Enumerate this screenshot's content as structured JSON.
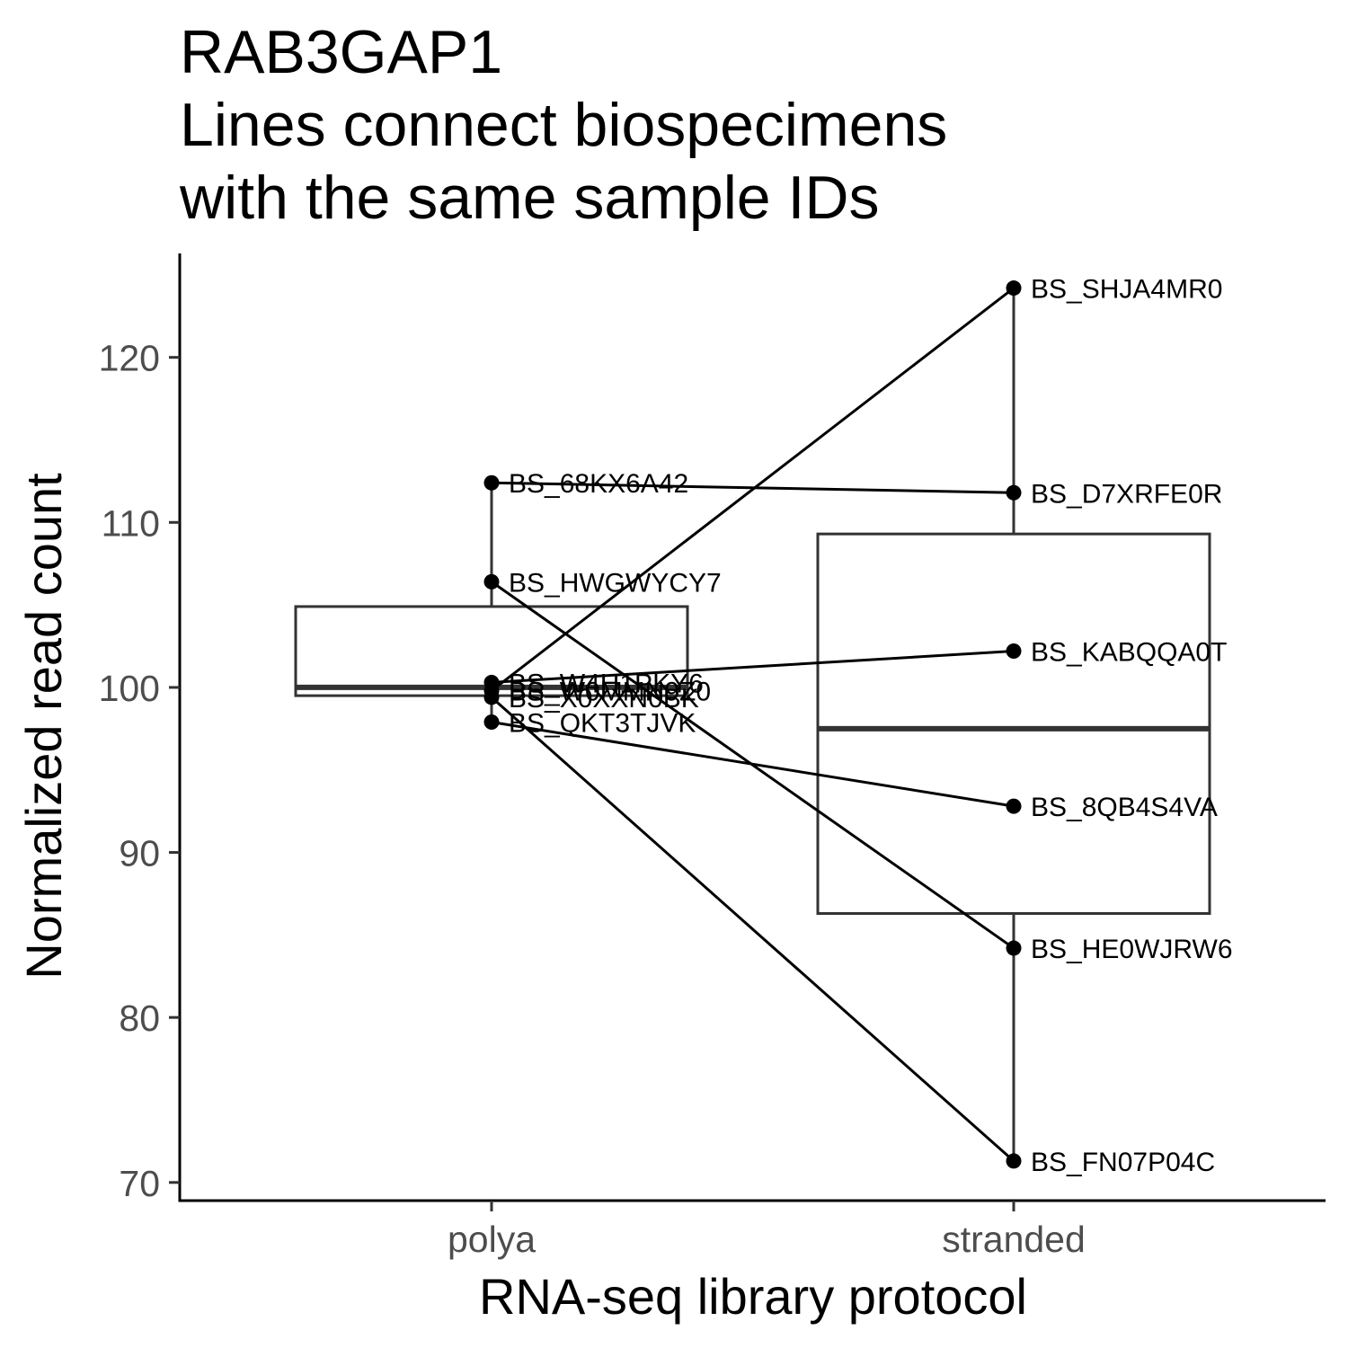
{
  "chart_data": {
    "type": "box",
    "title_lines": [
      "RAB3GAP1",
      "Lines connect biospecimens",
      "with the same sample IDs"
    ],
    "xlabel": "RNA-seq library protocol",
    "ylabel": "Normalized read count",
    "categories": [
      "polya",
      "stranded"
    ],
    "ylim": [
      68.9,
      126.3
    ],
    "yticks": [
      70,
      80,
      90,
      100,
      110,
      120
    ],
    "grid": false,
    "legend": "none",
    "boxes": [
      {
        "category": "polya",
        "q1": 99.5,
        "median": 100.0,
        "q3": 104.9,
        "whisker_low": 97.9,
        "whisker_high": 112.4
      },
      {
        "category": "stranded",
        "q1": 86.3,
        "median": 97.5,
        "q3": 109.3,
        "whisker_low": 71.3,
        "whisker_high": 124.2
      }
    ],
    "points": [
      {
        "category": "polya",
        "id": "BS_68KX6A42",
        "value": 112.4
      },
      {
        "category": "polya",
        "id": "BS_HWGWYCY7",
        "value": 106.4
      },
      {
        "category": "polya",
        "id": "BS_W4H1PKY6",
        "value": 100.3
      },
      {
        "category": "polya",
        "id": "BS_W0MMN9Z0",
        "value": 99.8
      },
      {
        "category": "polya",
        "id": "BS_X0XXN0BK",
        "value": 99.4
      },
      {
        "category": "polya",
        "id": "BS_QKT3TJVK",
        "value": 97.9
      },
      {
        "category": "stranded",
        "id": "BS_SHJA4MR0",
        "value": 124.2
      },
      {
        "category": "stranded",
        "id": "BS_D7XRFE0R",
        "value": 111.8
      },
      {
        "category": "stranded",
        "id": "BS_KABQQA0T",
        "value": 102.2
      },
      {
        "category": "stranded",
        "id": "BS_8QB4S4VA",
        "value": 92.8
      },
      {
        "category": "stranded",
        "id": "BS_HE0WJRW6",
        "value": 84.2
      },
      {
        "category": "stranded",
        "id": "BS_FN07P04C",
        "value": 71.3
      }
    ],
    "pairs": [
      {
        "polya": 112.4,
        "stranded": 111.8
      },
      {
        "polya": 106.4,
        "stranded": 84.2
      },
      {
        "polya": 100.3,
        "stranded": 102.2
      },
      {
        "polya": 99.8,
        "stranded": 124.2
      },
      {
        "polya": 99.4,
        "stranded": 71.3
      },
      {
        "polya": 97.9,
        "stranded": 92.8
      }
    ]
  }
}
